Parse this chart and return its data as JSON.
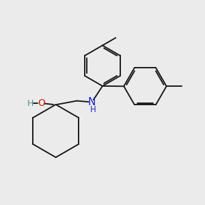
{
  "bg_color": "#ebebeb",
  "bond_color": "#1a1a1a",
  "O_color": "#cc2200",
  "H_color": "#4a9090",
  "N_color": "#2222cc",
  "line_width": 1.4,
  "figsize": [
    3.0,
    3.0
  ],
  "dpi": 100,
  "xlim": [
    0,
    10
  ],
  "ylim": [
    0,
    10
  ]
}
